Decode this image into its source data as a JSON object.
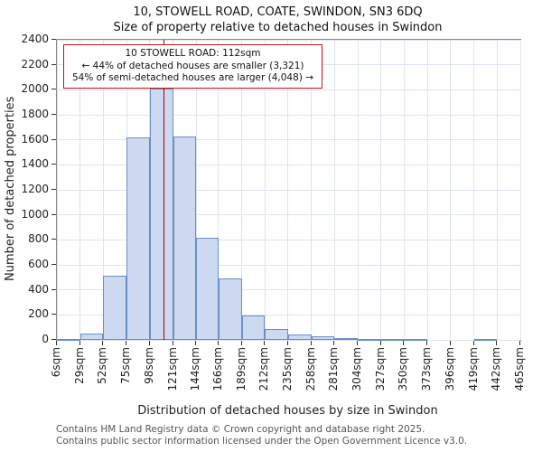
{
  "chart_data": {
    "type": "bar",
    "title": "10, STOWELL ROAD, COATE, SWINDON, SN3 6DQ",
    "subtitle": "Size of property relative to detached houses in Swindon",
    "xlabel": "Distribution of detached houses by size in Swindon",
    "ylabel": "Number of detached properties",
    "bin_edges_sqm": [
      6,
      29,
      52,
      75,
      98,
      121,
      144,
      166,
      189,
      212,
      235,
      258,
      281,
      304,
      327,
      350,
      373,
      396,
      419,
      442,
      465
    ],
    "bin_labels": [
      "6sqm",
      "29sqm",
      "52sqm",
      "75sqm",
      "98sqm",
      "121sqm",
      "144sqm",
      "166sqm",
      "189sqm",
      "212sqm",
      "235sqm",
      "258sqm",
      "281sqm",
      "304sqm",
      "327sqm",
      "350sqm",
      "373sqm",
      "396sqm",
      "419sqm",
      "442sqm",
      "465sqm"
    ],
    "values": [
      10,
      50,
      510,
      1620,
      2010,
      1630,
      820,
      490,
      195,
      90,
      45,
      30,
      15,
      10,
      8,
      5,
      0,
      0,
      8,
      0
    ],
    "ylim": [
      0,
      2400
    ],
    "ytick_step": 200,
    "grid": true,
    "legend": "none",
    "marker_line": {
      "x_sqm": 112,
      "color": "#a40000"
    },
    "annotation_lines": [
      "10 STOWELL ROAD: 112sqm",
      "← 44% of detached houses are smaller (3,321)",
      "54% of semi-detached houses are larger (4,048) →"
    ],
    "colors": {
      "bar_fill": "#ccd9f0",
      "bar_edge": "#6a8fc4",
      "grid": "#dce3f0",
      "marker": "#a40000",
      "annotation_border": "#cc1111"
    }
  },
  "footer": {
    "line1": "Contains HM Land Registry data © Crown copyright and database right 2025.",
    "line2": "Contains public sector information licensed under the Open Government Licence v3.0."
  }
}
